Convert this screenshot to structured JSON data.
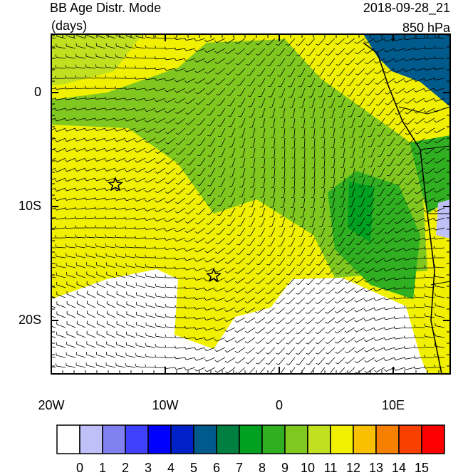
{
  "header": {
    "title": "BB Age Distr. Mode",
    "units": "(days)",
    "time": "2018-09-28_21",
    "level": "850 hPa"
  },
  "map": {
    "lon_ticks": [
      {
        "value": -20,
        "label": "20W"
      },
      {
        "value": -10,
        "label": "10W"
      },
      0,
      {
        "value": 10,
        "label": "10E"
      }
    ],
    "lat_ticks": [
      0,
      {
        "value": -10,
        "label": "10S"
      },
      {
        "value": -20,
        "label": "20S"
      }
    ]
  },
  "colorbar": {
    "labels": [
      0,
      1,
      2,
      3,
      4,
      5,
      6,
      7,
      8,
      9,
      10,
      11,
      12,
      13,
      14,
      15
    ],
    "colors": [
      "#ffffff",
      "#c0c0f8",
      "#8080f0",
      "#4040ff",
      "#0000ff",
      "#0020c8",
      "#005a8c",
      "#008040",
      "#00a020",
      "#30b020",
      "#80c820",
      "#c0e020",
      "#f0f000",
      "#f8c000",
      "#f88000",
      "#f84000",
      "#ff0000"
    ]
  }
}
